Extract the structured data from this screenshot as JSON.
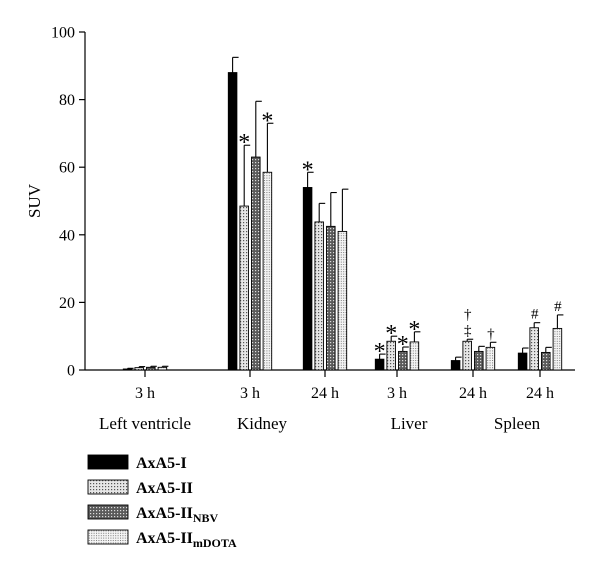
{
  "chart_data": {
    "type": "bar",
    "ylabel": "SUV",
    "ylim": [
      0,
      100
    ],
    "yticks": [
      0,
      20,
      40,
      60,
      80,
      100
    ],
    "grid": false,
    "legend_placement": "bottom-left",
    "groups": [
      {
        "tick": "3 h",
        "organ": "Left ventricle"
      },
      {
        "tick": "3 h",
        "organ": "Kidney"
      },
      {
        "tick": "24 h",
        "organ": ""
      },
      {
        "tick": "3 h",
        "organ": "Liver"
      },
      {
        "tick": "24 h",
        "organ": ""
      },
      {
        "tick": "24 h",
        "organ": "Spleen"
      }
    ],
    "organ_labels": [
      "Left ventricle",
      "Kidney",
      "Liver",
      "Spleen"
    ],
    "series": [
      {
        "name": "AxA5-I",
        "name_main": "AxA5-I",
        "name_sub": "",
        "pattern": "solid-black",
        "values": [
          0.3,
          88,
          54,
          3.2,
          2.8,
          5.0
        ],
        "errors": [
          0.2,
          4.5,
          4.5,
          1.5,
          1.0,
          1.5
        ]
      },
      {
        "name": "AxA5-II",
        "name_main": "AxA5-II",
        "name_sub": "",
        "pattern": "light-dots",
        "values": [
          0.7,
          48.5,
          43.8,
          8.5,
          8.5,
          12.5
        ],
        "errors": [
          0.3,
          18,
          5.5,
          1.5,
          0.6,
          1.5
        ]
      },
      {
        "name": "AxA5-IINBV",
        "name_main": "AxA5-II",
        "name_sub": "NBV",
        "pattern": "dark-dots",
        "values": [
          0.8,
          63,
          42.5,
          5.5,
          5.5,
          5.2
        ],
        "errors": [
          0.3,
          16.5,
          10,
          1.3,
          1.5,
          1.5
        ]
      },
      {
        "name": "AxA5-IImDOTA",
        "name_main": "AxA5-II",
        "name_sub": "mDOTA",
        "pattern": "fine-dots",
        "values": [
          0.8,
          58.5,
          41,
          8.3,
          6.7,
          12.3
        ],
        "errors": [
          0.3,
          14.5,
          12.5,
          3.0,
          1.5,
          4.0
        ]
      }
    ],
    "annotations": [
      {
        "group": 1,
        "series": 1,
        "text": "*"
      },
      {
        "group": 1,
        "series": 3,
        "text": "*"
      },
      {
        "group": 2,
        "series": 0,
        "text": "*"
      },
      {
        "group": 3,
        "series": 0,
        "text": "*"
      },
      {
        "group": 3,
        "series": 1,
        "text": "*"
      },
      {
        "group": 3,
        "series": 2,
        "text": "*"
      },
      {
        "group": 3,
        "series": 3,
        "text": "*"
      },
      {
        "group": 4,
        "series": 1,
        "text": "‡"
      },
      {
        "group": 4,
        "series": 1,
        "text": "†"
      },
      {
        "group": 4,
        "series": 3,
        "text": "†"
      },
      {
        "group": 5,
        "series": 1,
        "text": "#"
      },
      {
        "group": 5,
        "series": 3,
        "text": "#"
      }
    ]
  }
}
